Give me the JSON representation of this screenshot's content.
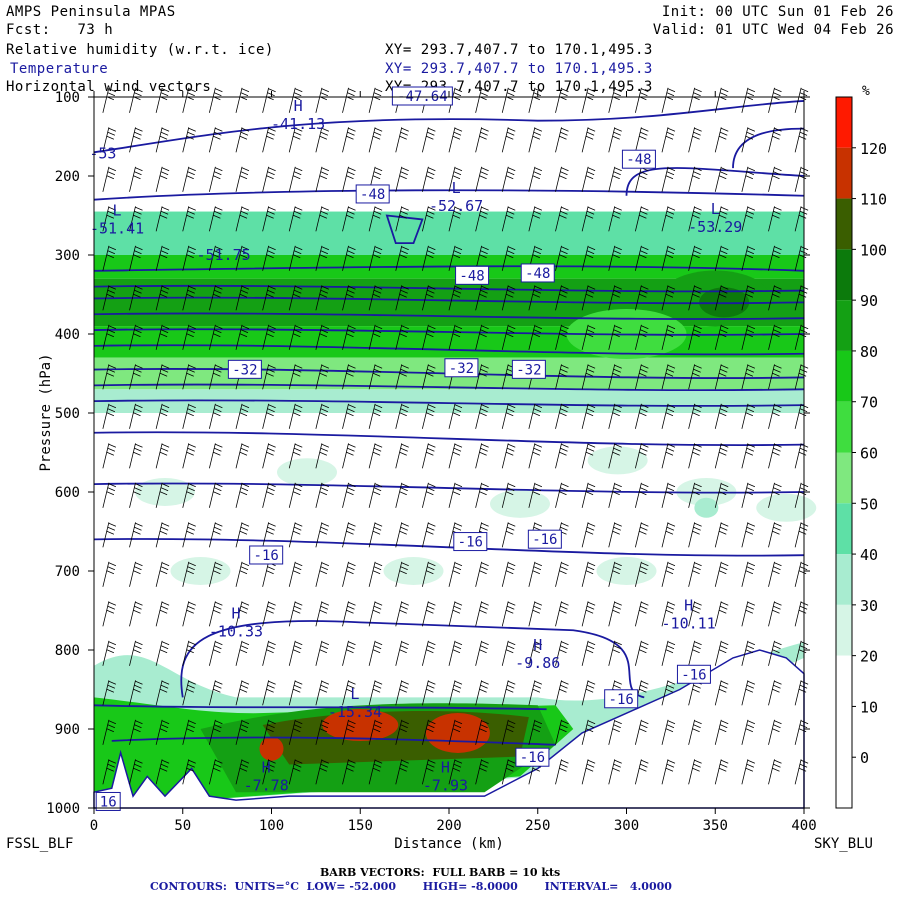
{
  "header": {
    "model": "AMPS Peninsula MPAS",
    "fcst_label": "Fcst:",
    "fcst_value": "73 h",
    "init": "Init: 00 UTC Sun 01 Feb 26",
    "valid": "Valid: 01 UTC Wed 04 Feb 26",
    "field1": "Relative humidity (w.r.t. ice)",
    "field2": "Temperature",
    "field3": "Horizontal wind vectors",
    "xy": "XY= 293.7,407.7 to 170.1,495.3"
  },
  "chart_data": {
    "type": "heatmap",
    "description_fields": [
      "Relative humidity (w.r.t. ice)",
      "Temperature",
      "Horizontal wind vectors"
    ],
    "xlabel": "Distance (km)",
    "ylabel": "Pressure (hPa)",
    "xlim": [
      0,
      400
    ],
    "ylim": [
      1000,
      100
    ],
    "x_ticks": [
      0,
      50,
      100,
      150,
      200,
      250,
      300,
      350,
      400
    ],
    "y_ticks": [
      100,
      200,
      300,
      400,
      500,
      600,
      700,
      800,
      900,
      1000
    ],
    "left_label": "FSSL_BLF",
    "right_label": "SKY_BLU",
    "colorbar": {
      "unit": "%",
      "levels": [
        0,
        10,
        20,
        30,
        40,
        50,
        60,
        70,
        80,
        90,
        100,
        110,
        120
      ],
      "colors": [
        "#ffffff",
        "#ffffff",
        "#ffffff",
        "#d6f5e6",
        "#a8ecd0",
        "#5ee0a6",
        "#7fe87f",
        "#3fdd3f",
        "#18c818",
        "#14a014",
        "#0c7a0c",
        "#3a5e00",
        "#c83200",
        "#ff1a00"
      ]
    },
    "temperature_contours": {
      "units": "°C",
      "low": "-52.000",
      "high": "-8.0000",
      "interval": "4.0000",
      "labels": [
        {
          "text": "-48",
          "x": 157,
          "p": 224
        },
        {
          "text": "-48",
          "x": 307,
          "p": 180
        },
        {
          "text": "-48",
          "x": 213,
          "p": 327
        },
        {
          "text": "-48",
          "x": 250,
          "p": 324
        },
        {
          "text": "-32",
          "x": 85,
          "p": 446
        },
        {
          "text": "-32",
          "x": 207,
          "p": 444
        },
        {
          "text": "-32",
          "x": 245,
          "p": 446
        },
        {
          "text": "-16",
          "x": 97,
          "p": 681
        },
        {
          "text": "-16",
          "x": 212,
          "p": 664
        },
        {
          "text": "-16",
          "x": 254,
          "p": 661
        },
        {
          "text": "-16",
          "x": 338,
          "p": 832
        },
        {
          "text": "-16",
          "x": 297,
          "p": 863
        },
        {
          "text": "-16",
          "x": 247,
          "p": 937
        },
        {
          "text": "16",
          "x": 8,
          "p": 993
        },
        {
          "text": "-47.64",
          "x": 185,
          "p": 100
        }
      ],
      "extrema": [
        {
          "kind": "H",
          "value": "-41.13",
          "x": 115,
          "p": 133
        },
        {
          "kind": "L",
          "value": "-52.67",
          "x": 204,
          "p": 237
        },
        {
          "kind": "L",
          "value": "-51.41",
          "x": 13,
          "p": 265
        },
        {
          "kind": "",
          "value": "-51.75",
          "x": 73,
          "p": 299
        },
        {
          "kind": "L",
          "value": "-53.29",
          "x": 350,
          "p": 263
        },
        {
          "kind": "H",
          "value": "-10.33",
          "x": 80,
          "p": 775
        },
        {
          "kind": "H",
          "value": "-9.86",
          "x": 250,
          "p": 815
        },
        {
          "kind": "H",
          "value": "-10.11",
          "x": 335,
          "p": 765
        },
        {
          "kind": "L",
          "value": "-15.34",
          "x": 147,
          "p": 877
        },
        {
          "kind": "H",
          "value": "-7.78",
          "x": 97,
          "p": 970
        },
        {
          "kind": "H",
          "value": "-7.93",
          "x": 198,
          "p": 970
        },
        {
          "kind": "",
          "value": "-53",
          "x": 5,
          "p": 170
        }
      ]
    },
    "rh_bands": [
      {
        "p_top": 245,
        "p_bot": 300,
        "rh": 45
      },
      {
        "p_top": 300,
        "p_bot": 330,
        "rh": 75
      },
      {
        "p_top": 330,
        "p_bot": 390,
        "rh": 85
      },
      {
        "p_top": 390,
        "p_bot": 430,
        "rh": 75
      },
      {
        "p_top": 430,
        "p_bot": 470,
        "rh": 55
      },
      {
        "p_top": 470,
        "p_bot": 500,
        "rh": 35
      }
    ],
    "wind_barbs": {
      "full_barb": "10 kts",
      "footer": "BARB VECTORS:  FULL BARB = 10 kts"
    },
    "footer_contours": "CONTOURS:  UNITS=°C  LOW= -52.000       HIGH= -8.0000       INTERVAL=   4.0000"
  }
}
